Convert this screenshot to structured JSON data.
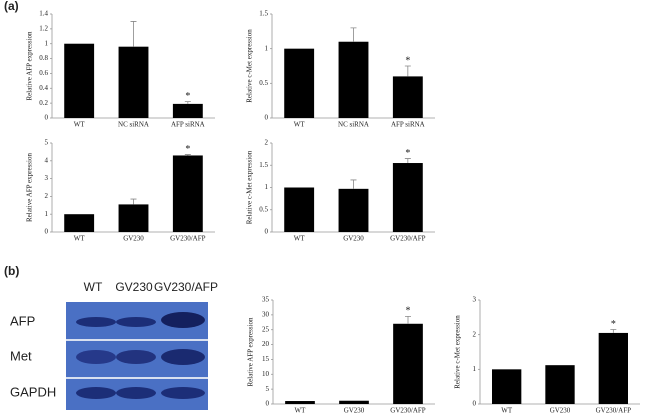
{
  "panel_labels": [
    "(a)",
    "(b)"
  ],
  "blot": {
    "lanes": [
      "WT",
      "GV230",
      "GV230/AFP"
    ],
    "rows": [
      "AFP",
      "Met",
      "GAPDH"
    ]
  },
  "chart_data": [
    {
      "type": "bar",
      "ylabel": "Relative AFP expression",
      "categories": [
        "WT",
        "NC siRNA",
        "AFP siRNA"
      ],
      "values": [
        1.0,
        0.96,
        0.19
      ],
      "errors": [
        0,
        0.34,
        0.03
      ],
      "markers": [
        null,
        null,
        "*"
      ],
      "color": "#000000",
      "ylim": [
        0,
        1.4
      ],
      "yticks": [
        0,
        0.2,
        0.4,
        0.6,
        0.8,
        1,
        1.2,
        1.4
      ]
    },
    {
      "type": "bar",
      "ylabel": "Relative c-Met expression",
      "categories": [
        "WT",
        "NC siRNA",
        "AFP siRNA"
      ],
      "values": [
        1.0,
        1.1,
        0.6
      ],
      "errors": [
        0,
        0.2,
        0.15
      ],
      "markers": [
        null,
        null,
        "*"
      ],
      "color": "#000000",
      "ylim": [
        0,
        1.5
      ],
      "yticks": [
        0,
        0.5,
        1,
        1.5
      ]
    },
    {
      "type": "bar",
      "ylabel": "Relative AFP expression",
      "categories": [
        "WT",
        "GV230",
        "GV230/AFP"
      ],
      "values": [
        1.0,
        1.55,
        4.3
      ],
      "errors": [
        0,
        0.3,
        0.05
      ],
      "markers": [
        null,
        null,
        "*"
      ],
      "color": "#000000",
      "ylim": [
        0,
        5
      ],
      "yticks": [
        0,
        1,
        2,
        3,
        4,
        5
      ]
    },
    {
      "type": "bar",
      "ylabel": "Relative c-Met expression",
      "categories": [
        "WT",
        "GV230",
        "GV230/AFP"
      ],
      "values": [
        1.0,
        0.97,
        1.55
      ],
      "errors": [
        0,
        0.2,
        0.1
      ],
      "markers": [
        null,
        null,
        "*"
      ],
      "color": "#000000",
      "ylim": [
        0,
        2
      ],
      "yticks": [
        0,
        0.5,
        1,
        1.5,
        2
      ]
    },
    {
      "type": "bar",
      "ylabel": "Relative AFP expression",
      "categories": [
        "WT",
        "GV230",
        "GV230/AFP"
      ],
      "values": [
        1,
        1.1,
        27
      ],
      "errors": [
        0,
        0,
        2.5
      ],
      "markers": [
        null,
        null,
        "*"
      ],
      "color": "#000000",
      "ylim": [
        0,
        35
      ],
      "yticks": [
        0,
        5,
        10,
        15,
        20,
        25,
        30,
        35
      ]
    },
    {
      "type": "bar",
      "ylabel": "Relative c-Met expression",
      "categories": [
        "WT",
        "GV230",
        "GV230/AFP"
      ],
      "values": [
        1,
        1.12,
        2.05
      ],
      "errors": [
        0,
        0,
        0.1
      ],
      "markers": [
        null,
        null,
        "*"
      ],
      "color": "#000000",
      "ylim": [
        0,
        3
      ],
      "yticks": [
        0,
        1,
        2,
        3
      ]
    }
  ]
}
